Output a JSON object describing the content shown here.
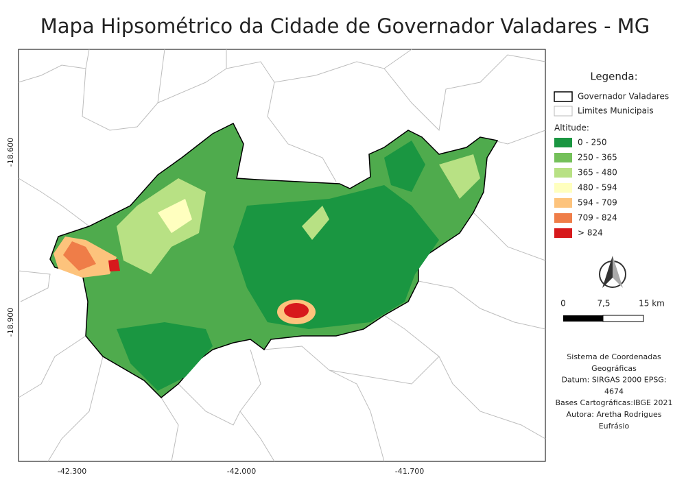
{
  "title": "Mapa Hipsométrico da Cidade de Governador Valadares - MG",
  "axes": {
    "left": [
      "-18.600",
      "-18.900"
    ],
    "bottom": [
      "-42.300",
      "-42.000",
      "-41.700"
    ]
  },
  "legend": {
    "title": "Legenda:",
    "boundaries": [
      {
        "label": "Governador Valadares",
        "stroke": "#000000"
      },
      {
        "label": "Limites Municipais",
        "stroke": "#bbbbbb"
      }
    ],
    "altitude_title": "Altitude:",
    "classes": [
      {
        "label": "0 - 250",
        "color": "#1a9641"
      },
      {
        "label": "250 - 365",
        "color": "#74c05a"
      },
      {
        "label": "365 - 480",
        "color": "#b8e184"
      },
      {
        "label": "480 - 594",
        "color": "#ffffbf"
      },
      {
        "label": "594 - 709",
        "color": "#fdc37c"
      },
      {
        "label": "709 - 824",
        "color": "#ef7d48"
      },
      {
        "label": "> 824",
        "color": "#d7191c"
      }
    ]
  },
  "scale_bar": [
    "0",
    "7,5",
    "15 km"
  ],
  "credits": [
    "Sistema de Coordenadas",
    "Geográficas",
    "Datum: SIRGAS 2000 EPSG:",
    "4674",
    "Bases Cartográficas:IBGE 2021",
    "Autora: Aretha Rodrigues",
    "Eufrásio"
  ]
}
